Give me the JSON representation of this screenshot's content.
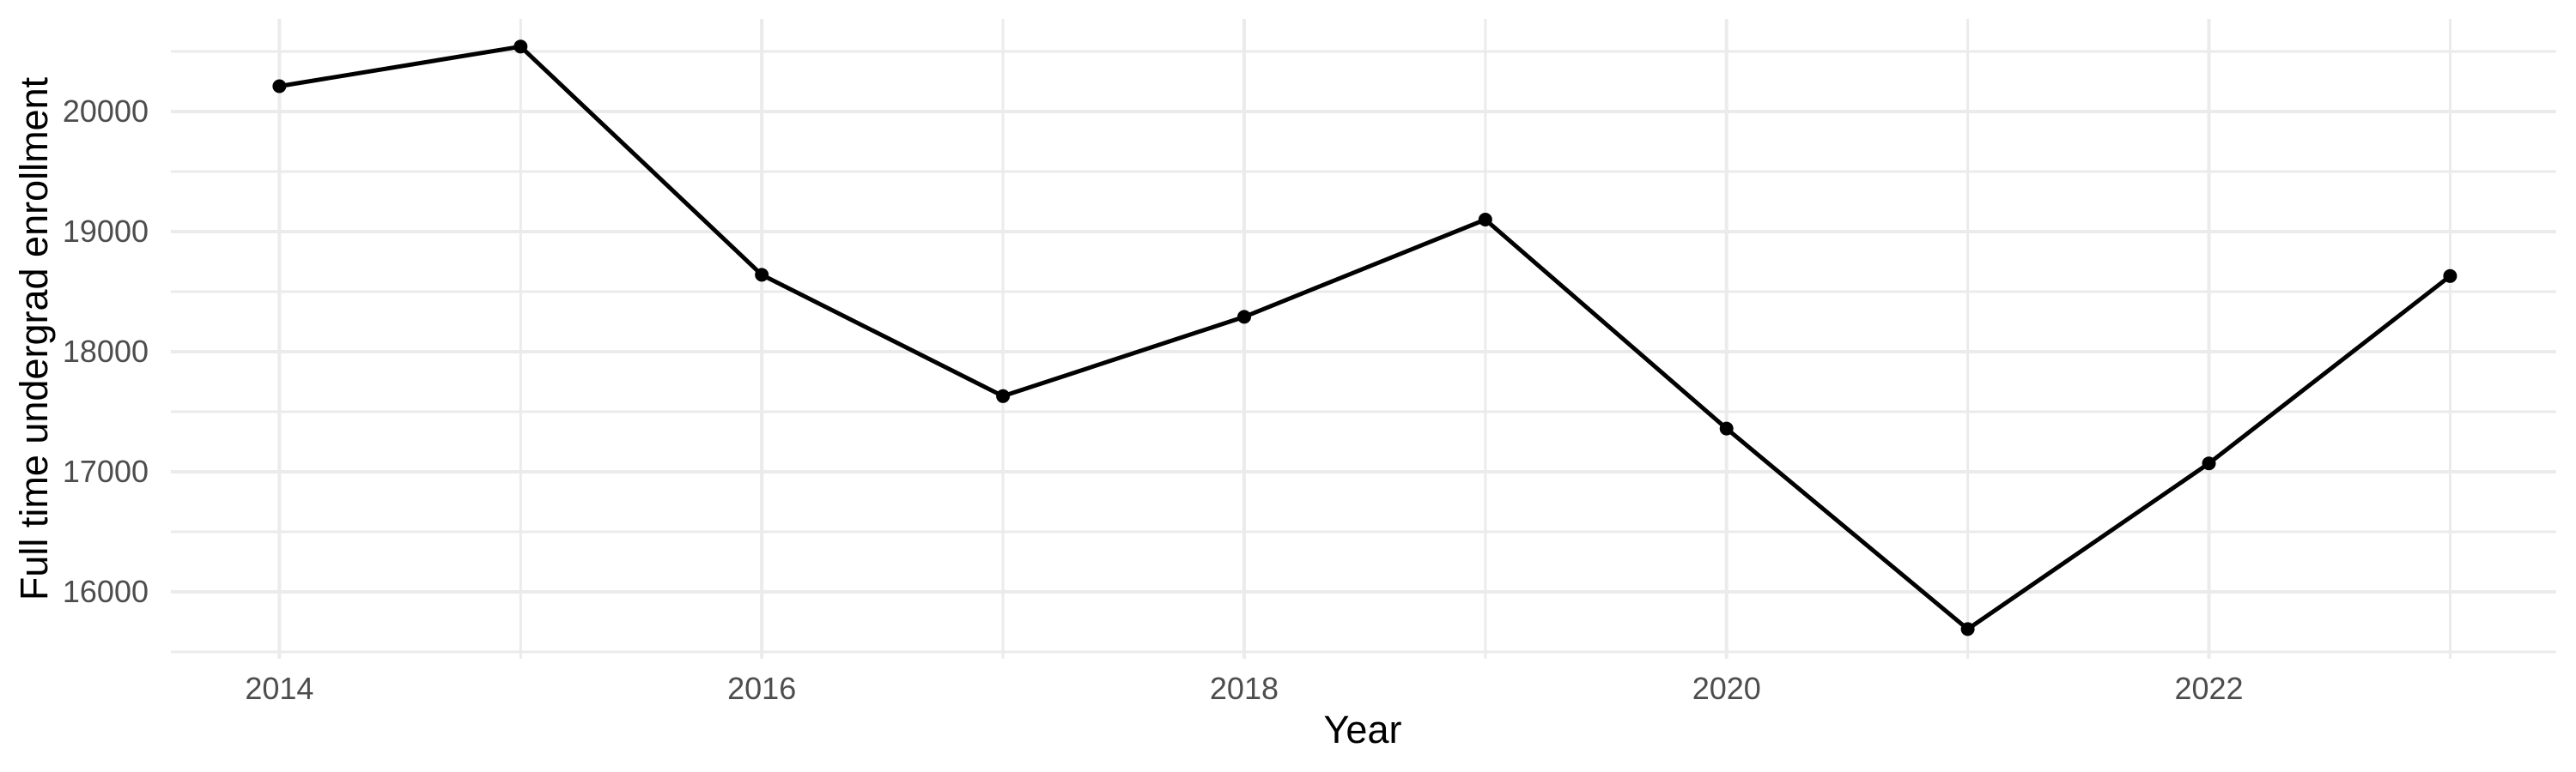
{
  "chart_data": {
    "type": "line",
    "title": "",
    "xlabel": "Year",
    "ylabel": "Full time undergrad enrollment",
    "x": [
      2014,
      2015,
      2016,
      2017,
      2018,
      2019,
      2020,
      2021,
      2022,
      2023
    ],
    "values": [
      20210,
      20540,
      18640,
      17630,
      18290,
      19100,
      17360,
      15690,
      17070,
      18630
    ],
    "xlim": [
      2013.55,
      2023.44
    ],
    "ylim": [
      15443,
      20771
    ],
    "x_ticks_major": [
      2014,
      2016,
      2018,
      2020,
      2022
    ],
    "x_ticks_minor": [
      2015,
      2017,
      2019,
      2021,
      2023
    ],
    "y_ticks_major": [
      16000,
      17000,
      18000,
      19000,
      20000
    ],
    "y_ticks_minor": [
      15500,
      16500,
      17500,
      18500,
      19500,
      20500
    ],
    "x_tick_labels": [
      "2014",
      "2016",
      "2018",
      "2020",
      "2022"
    ],
    "y_tick_labels": [
      "16000",
      "17000",
      "18000",
      "19000",
      "20000"
    ],
    "grid": "major+minor",
    "legend": "none",
    "point_marker": "filled-circle",
    "colors": {
      "line": "#000000",
      "point": "#000000",
      "grid": "#EBEBEB",
      "tick_label": "#4D4D4D",
      "axis_title": "#000000",
      "background": "#FFFFFF"
    }
  }
}
